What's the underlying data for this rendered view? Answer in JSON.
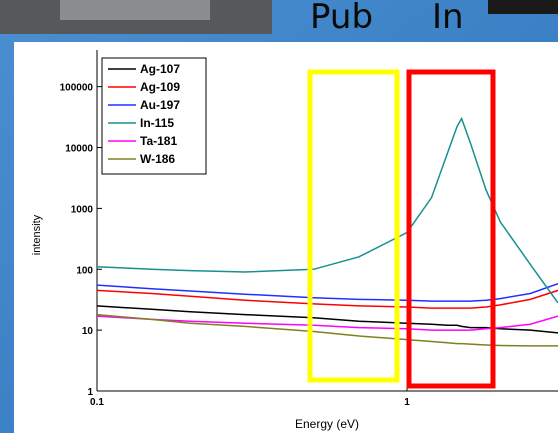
{
  "header": {
    "left_word": "Pub",
    "right_word": "In"
  },
  "chart_data": {
    "type": "line",
    "xlabel": "Energy (eV)",
    "ylabel": "intensity",
    "xscale": "log",
    "yscale": "log",
    "xlim": [
      0.1,
      3.07
    ],
    "ylim": [
      1,
      400000
    ],
    "xticks": [
      0.1,
      1
    ],
    "yticks": [
      1,
      10,
      100,
      1000,
      10000,
      100000
    ],
    "x": [
      0.1,
      0.15,
      0.2,
      0.3,
      0.5,
      0.7,
      1,
      1.2,
      1.35,
      1.45,
      1.5,
      1.6,
      1.8,
      2,
      2.5,
      3.07
    ],
    "series": [
      {
        "name": "Ag-107",
        "color": "#000000",
        "values": [
          25,
          22,
          20,
          18,
          16,
          14,
          13,
          12.5,
          12,
          12,
          11.5,
          11,
          11,
          10.5,
          10,
          9
        ]
      },
      {
        "name": "Ag-109",
        "color": "#ff0000",
        "values": [
          45,
          40,
          36,
          31,
          27,
          25,
          24,
          23,
          23,
          23,
          23,
          23,
          24,
          26,
          32,
          45
        ]
      },
      {
        "name": "Au-197",
        "color": "#2030ff",
        "values": [
          55,
          48,
          44,
          39,
          34,
          32,
          31,
          30,
          30,
          30,
          30,
          30,
          31,
          33,
          40,
          58
        ]
      },
      {
        "name": "In-115",
        "color": "#1a8f8f",
        "values": [
          110,
          100,
          95,
          90,
          100,
          160,
          400,
          1500,
          8000,
          22000,
          30000,
          12000,
          2000,
          600,
          120,
          28
        ]
      },
      {
        "name": "Ta-181",
        "color": "#ff00ff",
        "values": [
          17,
          15,
          14,
          13,
          12,
          11,
          10.5,
          10,
          10,
          10,
          10,
          10,
          10.5,
          11,
          12.5,
          17
        ]
      },
      {
        "name": "W-186",
        "color": "#808020",
        "values": [
          18,
          15,
          13,
          11.5,
          9.5,
          8,
          7,
          6.5,
          6.2,
          6,
          6,
          5.9,
          5.7,
          5.6,
          5.5,
          5.5
        ]
      }
    ]
  }
}
